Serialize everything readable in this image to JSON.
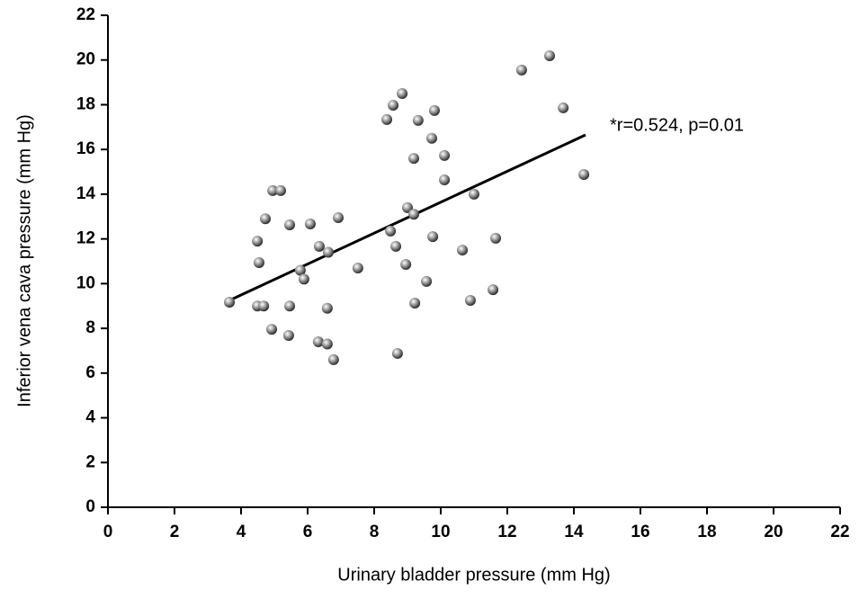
{
  "chart_data": {
    "type": "scatter",
    "x_label": "Urinary bladder pressure (mm Hg)",
    "y_label": "Inferior vena cava pressure (mm Hg)",
    "annotation": "*r=0.524, p=0.01",
    "x": [
      3.65,
      4.49,
      4.54,
      4.49,
      4.68,
      4.73,
      4.95,
      5.19,
      4.92,
      5.46,
      5.46,
      5.43,
      6.08,
      5.78,
      5.89,
      6.35,
      6.62,
      6.32,
      6.59,
      6.59,
      6.78,
      6.92,
      7.51,
      8.38,
      8.57,
      8.84,
      8.49,
      8.65,
      8.7,
      8.95,
      9.0,
      9.19,
      9.19,
      9.32,
      9.22,
      9.57,
      9.73,
      9.81,
      9.76,
      10.11,
      10.11,
      10.65,
      11.0,
      10.89,
      11.57,
      11.65,
      12.43,
      13.27,
      13.68,
      14.3
    ],
    "values": [
      9.17,
      11.9,
      10.94,
      9.0,
      9.0,
      12.9,
      14.16,
      14.16,
      7.96,
      12.63,
      9.0,
      7.68,
      12.67,
      10.6,
      10.2,
      11.67,
      11.4,
      7.4,
      7.3,
      8.9,
      6.6,
      12.95,
      10.7,
      17.34,
      17.98,
      18.5,
      12.35,
      11.67,
      6.88,
      10.86,
      13.4,
      13.1,
      15.6,
      17.3,
      9.13,
      10.1,
      16.5,
      17.74,
      12.1,
      15.73,
      14.64,
      11.5,
      14.0,
      9.25,
      9.73,
      12.03,
      19.55,
      20.19,
      17.86,
      14.88
    ],
    "trendline": {
      "x": [
        3.65,
        14.35
      ],
      "values": [
        9.25,
        16.65
      ]
    },
    "xlim": [
      0,
      22
    ],
    "xticks": [
      0,
      2,
      4,
      6,
      8,
      10,
      12,
      14,
      16,
      18,
      20,
      22
    ],
    "ylim": [
      0,
      22
    ],
    "yticks": [
      0,
      2,
      4,
      6,
      8,
      10,
      12,
      14,
      16,
      18,
      20,
      22
    ],
    "grid": false
  }
}
